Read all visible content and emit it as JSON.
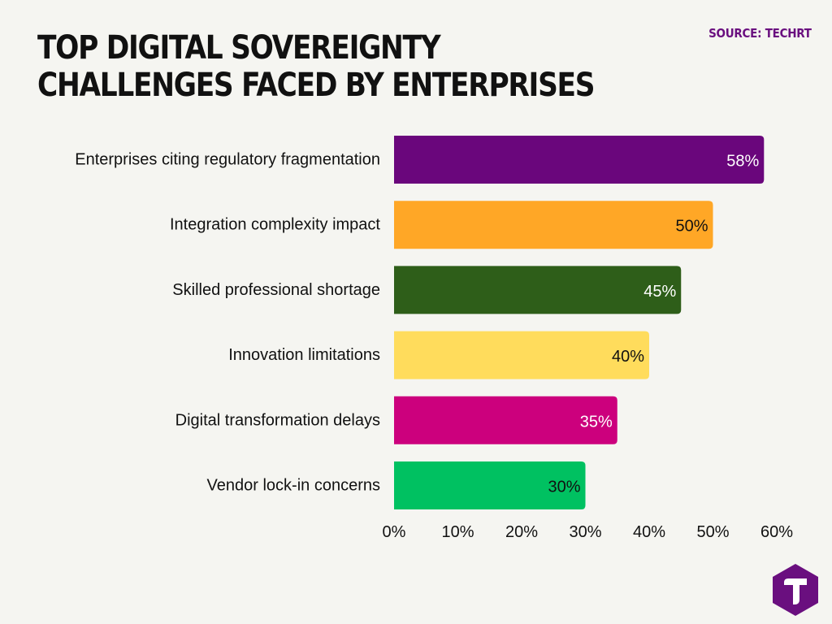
{
  "header": {
    "title": "TOP DIGITAL SOVEREIGNTY CHALLENGES FACED BY ENTERPRISES",
    "source": "SOURCE: TECHRT"
  },
  "logo": {
    "icon": "techrt-logo-icon",
    "color": "#6a0f7f"
  },
  "chart_data": {
    "type": "bar",
    "orientation": "horizontal",
    "title": "TOP DIGITAL SOVEREIGNTY CHALLENGES FACED BY ENTERPRISES",
    "categories": [
      "Enterprises citing regulatory fragmentation",
      "Integration complexity impact",
      "Skilled professional shortage",
      "Innovation limitations",
      "Digital transformation delays",
      "Vendor lock-in concerns"
    ],
    "values": [
      58,
      50,
      45,
      40,
      35,
      30
    ],
    "data_labels": [
      "58%",
      "50%",
      "45%",
      "40%",
      "35%",
      "30%"
    ],
    "colors": [
      "#6a067c",
      "#ffa726",
      "#2e5e19",
      "#ffdc5c",
      "#cc007d",
      "#00c161"
    ],
    "label_colors": [
      "#ffffff",
      "#111111",
      "#ffffff",
      "#111111",
      "#ffffff",
      "#111111"
    ],
    "xlim": [
      0,
      60
    ],
    "xticks": [
      0,
      10,
      20,
      30,
      40,
      50,
      60
    ],
    "xtick_labels": [
      "0%",
      "10%",
      "20%",
      "30%",
      "40%",
      "50%",
      "60%"
    ],
    "grid": false,
    "legend": "none"
  }
}
